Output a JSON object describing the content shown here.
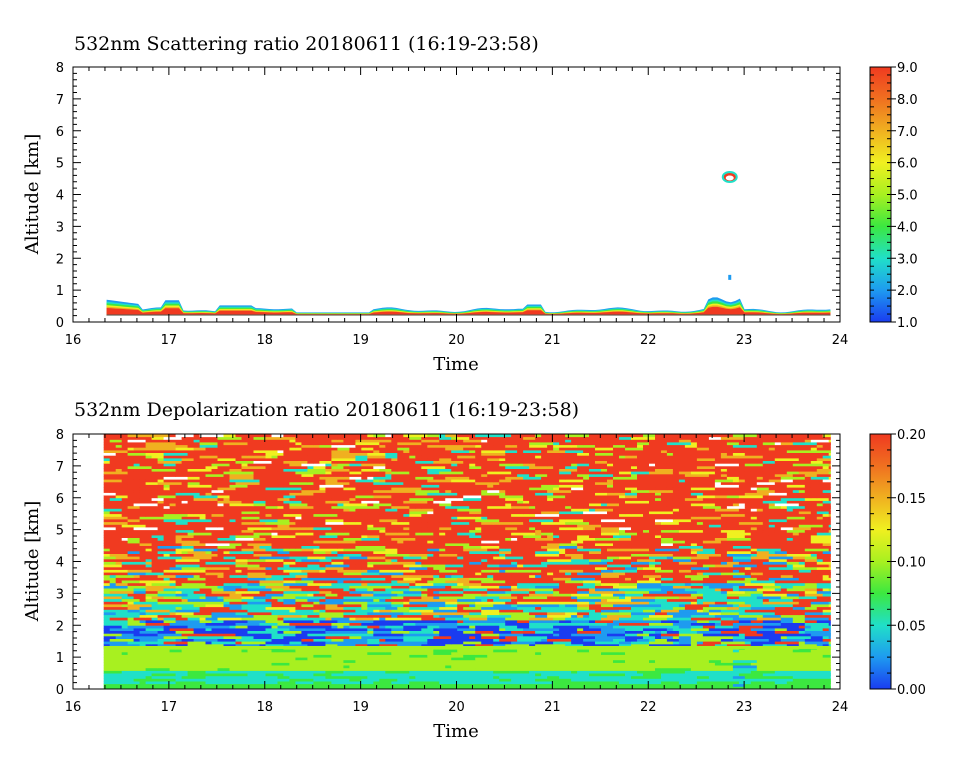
{
  "chart_data": [
    {
      "type": "heatmap",
      "title": "532nm Scattering ratio  20180611 (16:19-23:58)",
      "xlabel": "Time",
      "ylabel": "Altitude [km]",
      "xlim": [
        16,
        24
      ],
      "ylim": [
        0,
        8
      ],
      "x_ticks": [
        "16",
        "17",
        "18",
        "19",
        "20",
        "21",
        "22",
        "23",
        "24"
      ],
      "y_ticks": [
        "0",
        "1",
        "2",
        "3",
        "4",
        "5",
        "6",
        "7",
        "8"
      ],
      "colorbar": {
        "range": [
          1.0,
          9.0
        ],
        "ticks": [
          "1.0",
          "2.0",
          "3.0",
          "4.0",
          "5.0",
          "6.0",
          "7.0",
          "8.0",
          "9.0"
        ]
      },
      "features": [
        {
          "desc": "boundary layer top",
          "time_start": 16.35,
          "time_end": 23.9,
          "altitude_km": [
            0.2,
            0.75
          ]
        },
        {
          "desc": "small cloud",
          "time": 22.85,
          "altitude_km": 4.55
        },
        {
          "desc": "small patch",
          "time": 22.85,
          "altitude_km": 1.4
        }
      ]
    },
    {
      "type": "heatmap",
      "title": "532nm Depolarization ratio  20180611 (16:19-23:58)",
      "xlabel": "Time",
      "ylabel": "Altitude [km]",
      "xlim": [
        16,
        24
      ],
      "ylim": [
        0,
        8
      ],
      "x_ticks": [
        "16",
        "17",
        "18",
        "19",
        "20",
        "21",
        "22",
        "23",
        "24"
      ],
      "y_ticks": [
        "0",
        "1",
        "2",
        "3",
        "4",
        "5",
        "6",
        "7",
        "8"
      ],
      "colorbar": {
        "range": [
          0.0,
          0.2
        ],
        "ticks": [
          "0.00",
          "0.05",
          "0.10",
          "0.15",
          "0.20"
        ]
      },
      "data_time_range": [
        16.32,
        23.9
      ]
    }
  ],
  "colors": {
    "scale": [
      "#1a3cf0",
      "#1e9bf0",
      "#20e0c8",
      "#3ce840",
      "#a8f020",
      "#f0f020",
      "#f0b020",
      "#f07020",
      "#f03a20"
    ],
    "background": "#ffffff"
  }
}
